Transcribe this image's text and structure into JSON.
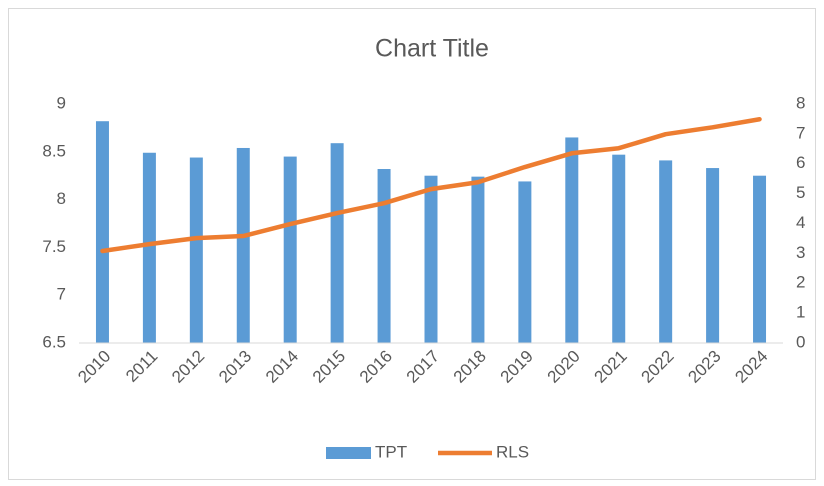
{
  "chart_data": {
    "type": "bar",
    "title": "Chart Title",
    "categories": [
      "2010",
      "2011",
      "2012",
      "2013",
      "2014",
      "2015",
      "2016",
      "2017",
      "2018",
      "2019",
      "2020",
      "2021",
      "2022",
      "2023",
      "2024"
    ],
    "series": [
      {
        "name": "TPT",
        "type": "bar",
        "color": "#5b9bd5",
        "values": [
          8.82,
          8.49,
          8.44,
          8.54,
          8.45,
          8.59,
          8.32,
          8.25,
          8.24,
          8.19,
          8.65,
          8.47,
          8.41,
          8.33,
          8.25
        ]
      },
      {
        "name": "RLS",
        "type": "line",
        "axis": "y2",
        "color": "#ed7d31",
        "values": [
          3.08,
          3.31,
          3.51,
          3.58,
          3.98,
          4.35,
          4.68,
          5.15,
          5.38,
          5.89,
          6.35,
          6.52,
          6.99,
          7.22,
          7.49
        ]
      }
    ],
    "ylim": [
      6.5,
      9
    ],
    "yticks": [
      6.5,
      7,
      7.5,
      8,
      8.5,
      9
    ],
    "y2lim": [
      0,
      8
    ],
    "y2ticks": [
      0,
      1,
      2,
      3,
      4,
      5,
      6,
      7,
      8
    ],
    "grid": false,
    "legend": "bottom"
  }
}
